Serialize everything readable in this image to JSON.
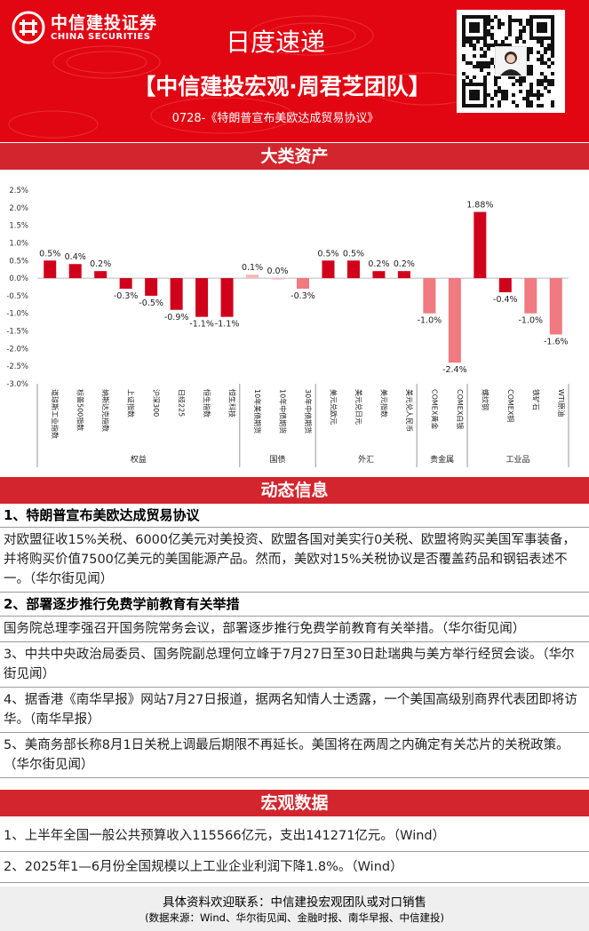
{
  "header": {
    "logo_cn": "中信建投证券",
    "logo_en": "CHINA SECURITIES",
    "title": "日度速递",
    "team": "【中信建投宏观·周君芝团队】",
    "subtitle": "0728-《特朗普宣布美欧达成贸易协议》"
  },
  "sections": {
    "assets": "大类资产",
    "news": "动态信息",
    "macro": "宏观数据"
  },
  "chart_data": {
    "type": "bar",
    "title": "",
    "xlabel": "",
    "ylabel": "",
    "ylim": [
      -3.0,
      2.5
    ],
    "yticks": [
      "2.5%",
      "2.0%",
      "1.5%",
      "1.0%",
      "0.5%",
      "0.0%",
      "-0.5%",
      "-1.0%",
      "-1.5%",
      "-2.0%",
      "-2.5%",
      "-3.0%"
    ],
    "grid": false,
    "categories": [
      "道琼斯工业指数",
      "标普500指数",
      "纳斯达克指数",
      "上证指数",
      "沪深300",
      "日经225",
      "恒生指数",
      "恒生科技",
      "10年美债期货",
      "10年中债期货",
      "30年中债期货",
      "美元兑欧元",
      "美元兑日元",
      "美元指数",
      "美元兑人民币",
      "COMEX黄金",
      "COMEX白银",
      "螺纹钢",
      "COMEX铜",
      "铁矿石",
      "WTI原油"
    ],
    "values": [
      0.5,
      0.4,
      0.2,
      -0.3,
      -0.5,
      -0.9,
      -1.1,
      -1.1,
      0.1,
      0.0,
      -0.3,
      0.5,
      0.5,
      0.2,
      0.2,
      -1.0,
      -2.4,
      1.88,
      -0.4,
      -1.0,
      -1.6
    ],
    "data_labels": [
      "0.5%",
      "0.4%",
      "0.2%",
      "-0.3%",
      "-0.5%",
      "-0.9%",
      "-1.1%",
      "-1.1%",
      "0.1%",
      "0.0%",
      "-0.3%",
      "0.5%",
      "0.5%",
      "0.2%",
      "0.2%",
      "-1.0%",
      "-2.4%",
      "1.88%",
      "-0.4%",
      "-1.0%",
      "-1.6%"
    ],
    "groups": [
      {
        "name": "权益",
        "count": 8,
        "color": "#d0021b"
      },
      {
        "name": "国债",
        "count": 3,
        "color": "#f2a0a0"
      },
      {
        "name": "外汇",
        "count": 4,
        "color": "#d0021b"
      },
      {
        "name": "贵金属",
        "count": 2,
        "color": "#f07a80"
      },
      {
        "name": "工业品",
        "count": 4,
        "color": "#d0021b"
      }
    ],
    "light_color": "#f07a80"
  },
  "news": [
    {
      "head": "1、特朗普宣布美欧达成贸易协议",
      "body": "对欧盟征收15%关税、6000亿美元对美投资、欧盟各国对美实行0关税、欧盟将购买美国军事装备，并将购买价值7500亿美元的美国能源产品。然而，美欧对15%关税协议是否覆盖药品和钢铝表述不一。（华尔街见闻）"
    },
    {
      "head": "2、部署逐步推行免费学前教育有关举措",
      "body": "国务院总理李强召开国务院常务会议，部署逐步推行免费学前教育有关举措。（华尔街见闻）"
    },
    {
      "head": "",
      "body": "3、中共中央政治局委员、国务院副总理何立峰于7月27日至30日赴瑞典与美方举行经贸会谈。（华尔街见闻）"
    },
    {
      "head": "",
      "body": "4、据香港《南华早报》网站7月27日报道，据两名知情人士透露，一个美国高级别商界代表团即将访华。（南华早报）"
    },
    {
      "head": "",
      "body": "5、美商务部长称8月1日关税上调最后期限不再延长。美国将在两周之内确定有关芯片的关税政策。（华尔街见闻）"
    }
  ],
  "macro": [
    "1、上半年全国一般公共预算收入115566亿元，支出141271亿元。（Wind）",
    "2、2025年1—6月份全国规模以上工业企业利润下降1.8%。（Wind）"
  ],
  "footer": {
    "contact": "具体资料欢迎联系：中信建投宏观团队或对口销售",
    "source": "(数据来源：Wind、华尔街见闻、金融时报、南华早报、中信建投)"
  }
}
